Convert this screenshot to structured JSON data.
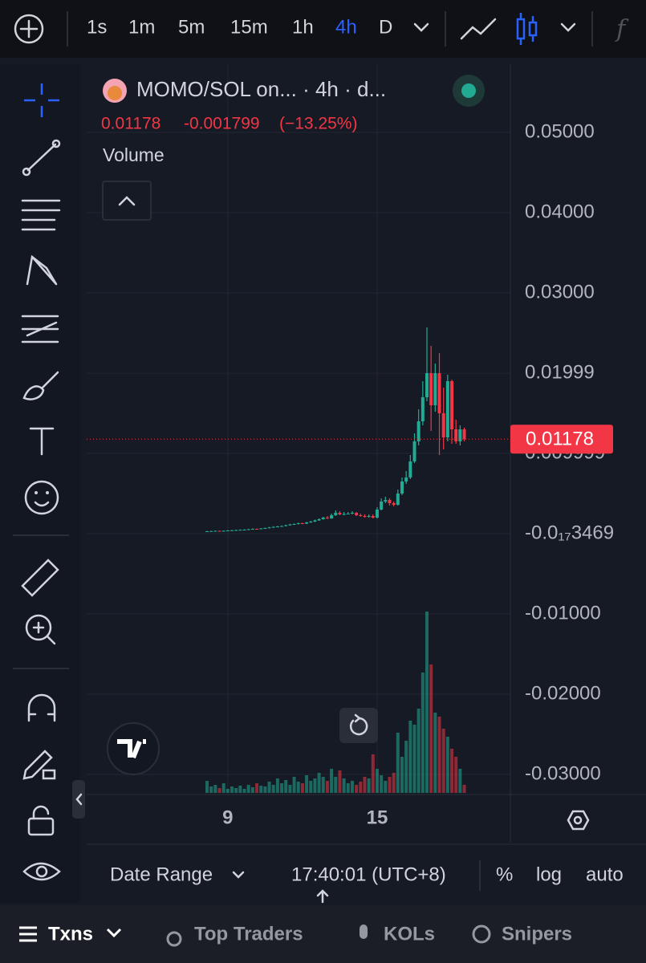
{
  "toolbar": {
    "intervals": [
      "1s",
      "1m",
      "5m",
      "15m",
      "1h",
      "4h",
      "D"
    ]
  },
  "chart_data": {
    "type": "candlestick",
    "title": "MOMO/SOL on... · 4h · d...",
    "change": -0.001799,
    "change_percent": {
      "value": -13.25,
      "label": "(−13.25%)"
    },
    "indicator": "Volume",
    "categories": [
      null,
      null,
      null,
      null,
      null,
      "9",
      null,
      null,
      null,
      null,
      null,
      null,
      null,
      null,
      null,
      null,
      null,
      null,
      null,
      null,
      null,
      null,
      null,
      null,
      null,
      null,
      null,
      null,
      null,
      null,
      null,
      null,
      null,
      null,
      null,
      null,
      null,
      null,
      null,
      null,
      null,
      "15",
      null,
      null,
      null,
      null,
      null,
      null,
      null,
      null,
      null,
      null,
      null,
      null,
      null,
      null,
      null,
      null,
      null,
      null,
      null,
      null,
      null
    ],
    "open": [
      0.00029,
      0.0003,
      0.00032,
      0.00035,
      0.00033,
      0.00036,
      0.0004,
      0.00042,
      0.00045,
      0.00048,
      0.0005,
      0.00055,
      0.0006,
      0.00058,
      0.00065,
      0.0007,
      0.00078,
      0.00085,
      0.0009,
      0.00095,
      0.00105,
      0.00115,
      0.0012,
      0.0013,
      0.00125,
      0.0014,
      0.0015,
      0.00165,
      0.0018,
      0.002,
      0.0019,
      0.0023,
      0.0026,
      0.0024,
      0.00245,
      0.0025,
      0.0026,
      0.0023,
      0.0022,
      0.0021,
      0.0022,
      0.002,
      0.003,
      0.004,
      0.0042,
      0.0038,
      0.0036,
      0.005,
      0.0065,
      0.007,
      0.009,
      0.0115,
      0.014,
      0.017,
      0.02,
      0.016,
      0.02,
      0.015,
      0.012,
      0.019,
      0.013,
      0.0115,
      0.013
    ],
    "high": [
      0.00035,
      0.00036,
      0.00038,
      0.00038,
      0.0004,
      0.00044,
      0.00046,
      0.0005,
      0.00052,
      0.00055,
      0.0006,
      0.00066,
      0.00065,
      0.0007,
      0.00076,
      0.00084,
      0.00092,
      0.00098,
      0.00102,
      0.00112,
      0.00122,
      0.00128,
      0.00138,
      0.00136,
      0.00148,
      0.0016,
      0.00175,
      0.0019,
      0.0021,
      0.0022,
      0.0025,
      0.0029,
      0.0028,
      0.0027,
      0.0027,
      0.0028,
      0.0027,
      0.0025,
      0.0024,
      0.0024,
      0.0024,
      0.0033,
      0.0044,
      0.0046,
      0.0044,
      0.004,
      0.0055,
      0.007,
      0.0078,
      0.0098,
      0.0125,
      0.0155,
      0.019,
      0.0257,
      0.0234,
      0.0212,
      0.0225,
      0.0182,
      0.0198,
      0.0192,
      0.0142,
      0.0135,
      0.0132
    ],
    "low": [
      0.00026,
      0.00028,
      0.0003,
      0.0003,
      0.0003,
      0.00034,
      0.00037,
      0.0004,
      0.00043,
      0.00045,
      0.00047,
      0.00052,
      0.00054,
      0.00055,
      0.0006,
      0.00066,
      0.00074,
      0.0008,
      0.00085,
      0.0009,
      0.001,
      0.0011,
      0.00115,
      0.00118,
      0.0012,
      0.00135,
      0.00145,
      0.0016,
      0.00175,
      0.00182,
      0.00185,
      0.0022,
      0.0023,
      0.0023,
      0.0024,
      0.0024,
      0.0022,
      0.0021,
      0.002,
      0.002,
      0.0019,
      0.0019,
      0.0029,
      0.0038,
      0.0035,
      0.0034,
      0.0035,
      0.0048,
      0.0062,
      0.0068,
      0.0088,
      0.011,
      0.0135,
      0.0165,
      0.0128,
      0.0152,
      0.0098,
      0.0105,
      0.0115,
      0.0112,
      0.0112,
      0.011,
      0.0115
    ],
    "close": [
      0.0003,
      0.00032,
      0.00035,
      0.00033,
      0.00036,
      0.0004,
      0.00042,
      0.00045,
      0.00048,
      0.0005,
      0.00055,
      0.0006,
      0.00058,
      0.00065,
      0.0007,
      0.00078,
      0.00085,
      0.0009,
      0.00095,
      0.00105,
      0.00115,
      0.0012,
      0.0013,
      0.00125,
      0.0014,
      0.0015,
      0.00165,
      0.0018,
      0.002,
      0.0019,
      0.0023,
      0.0026,
      0.0024,
      0.00245,
      0.0025,
      0.0026,
      0.0023,
      0.0022,
      0.0021,
      0.0022,
      0.002,
      0.003,
      0.004,
      0.0042,
      0.0038,
      0.0036,
      0.005,
      0.0065,
      0.007,
      0.009,
      0.0115,
      0.014,
      0.017,
      0.02,
      0.016,
      0.02,
      0.015,
      0.012,
      0.019,
      0.013,
      0.0115,
      0.013,
      0.01178
    ],
    "volume": [
      15,
      8,
      10,
      6,
      12,
      5,
      8,
      6,
      9,
      5,
      10,
      7,
      12,
      9,
      8,
      14,
      10,
      18,
      12,
      16,
      10,
      20,
      14,
      12,
      22,
      15,
      18,
      25,
      20,
      15,
      30,
      20,
      28,
      18,
      12,
      15,
      10,
      14,
      20,
      18,
      48,
      30,
      22,
      15,
      20,
      25,
      75,
      45,
      65,
      90,
      85,
      105,
      150,
      226,
      160,
      100,
      95,
      80,
      70,
      55,
      45,
      30,
      10
    ],
    "up_color": "#22ab94",
    "down_color": "#f23645",
    "ylim": [
      -0.0325,
      0.0585
    ],
    "yticks": [
      {
        "value": 0.05,
        "label": "0.05000"
      },
      {
        "value": 0.04,
        "label": "0.04000"
      },
      {
        "value": 0.03,
        "label": "0.03000"
      },
      0.01999,
      0.009999,
      {
        "value": -3.469e-18,
        "label": "-0.0₁₇3469"
      },
      {
        "value": -0.01,
        "label": "-0.01000"
      },
      {
        "value": -0.02,
        "label": "-0.02000"
      },
      {
        "value": -0.03,
        "label": "-0.03000"
      }
    ],
    "grid": true
  },
  "bottom_bar": {
    "date_range": "Date Range",
    "time": "17:40:01 (UTC+8)",
    "scale_options": [
      "%",
      "log",
      "auto"
    ]
  },
  "tabs": [
    "Txns",
    "Top Traders",
    "KOLs",
    "Snipers"
  ]
}
